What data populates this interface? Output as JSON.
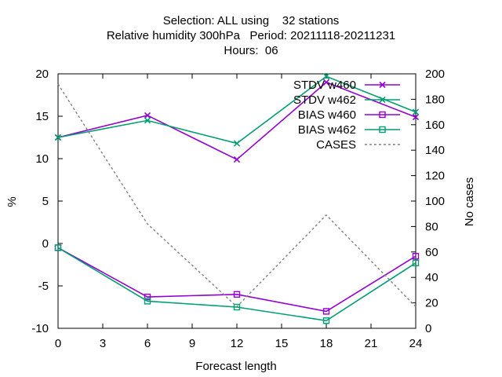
{
  "title": {
    "line1": "Selection: ALL using    32 stations",
    "line2": "Relative humidity 300hPa   Period: 20211118-20211231",
    "line3": "Hours:  06"
  },
  "chart_data": {
    "type": "line",
    "title": "Selection: ALL using    32 stations / Relative humidity 300hPa   Period: 20211118-20211231 / Hours:  06",
    "xlabel": "Forecast length",
    "ylabel": "%",
    "y2label": "No cases",
    "xlim": [
      0,
      24
    ],
    "ylim": [
      -10,
      20
    ],
    "y2lim": [
      0,
      200
    ],
    "xticks": [
      0,
      3,
      6,
      9,
      12,
      15,
      18,
      21,
      24
    ],
    "yticks": [
      -10,
      -5,
      0,
      5,
      10,
      15,
      20
    ],
    "y2ticks": [
      0,
      20,
      40,
      60,
      80,
      100,
      120,
      140,
      160,
      180,
      200
    ],
    "grid": false,
    "legend_position": "top-right",
    "series": [
      {
        "name": "STDV w460",
        "axis": "y1",
        "color": "#9400d3",
        "marker": "x",
        "x": [
          0,
          6,
          12,
          18,
          24
        ],
        "values": [
          12.5,
          15.1,
          9.9,
          19.0,
          14.9
        ]
      },
      {
        "name": "STDV w462",
        "axis": "y1",
        "color": "#009e73",
        "marker": "x",
        "x": [
          0,
          6,
          12,
          18,
          24
        ],
        "values": [
          12.5,
          14.5,
          11.8,
          19.7,
          15.5
        ]
      },
      {
        "name": "BIAS w460",
        "axis": "y1",
        "color": "#9400d3",
        "marker": "square",
        "x": [
          0,
          6,
          12,
          18,
          24
        ],
        "values": [
          -0.5,
          -6.3,
          -6.0,
          -8.0,
          -1.5
        ]
      },
      {
        "name": "BIAS w462",
        "axis": "y1",
        "color": "#009e73",
        "marker": "square",
        "x": [
          0,
          6,
          12,
          18,
          24
        ],
        "values": [
          -0.5,
          -6.8,
          -7.5,
          -9.1,
          -2.3
        ]
      },
      {
        "name": "CASES",
        "axis": "y2",
        "color": "#808080",
        "marker": "none",
        "dash": true,
        "x": [
          0,
          6,
          12,
          18,
          24
        ],
        "values": [
          192,
          82,
          17,
          89,
          17
        ]
      }
    ]
  }
}
